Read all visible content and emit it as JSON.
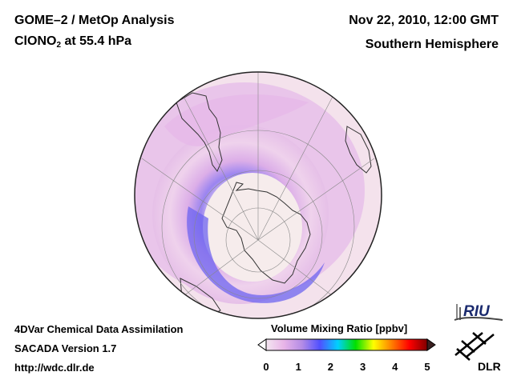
{
  "header": {
    "title_line1": "GOME–2 / MetOp Analysis",
    "title_species_main": "ClONO",
    "title_species_sub": "2",
    "title_level": " at 55.4 hPa",
    "date": "Nov 22, 2010, 12:00 GMT",
    "region": "Southern Hemisphere"
  },
  "footer": {
    "method": "4DVar Chemical Data Assimilation",
    "version": "SACADA Version 1.7",
    "url": "http://wdc.dlr.de"
  },
  "colorbar": {
    "title": "Volume Mixing Ratio [ppbv]",
    "ticks": [
      "0",
      "1",
      "2",
      "3",
      "4",
      "5"
    ],
    "min": 0,
    "max": 5,
    "colors": [
      "#f3e6f0",
      "#e8b4e8",
      "#b48ce6",
      "#5050ff",
      "#00d0ff",
      "#00e000",
      "#ffff00",
      "#ff8000",
      "#ff0000",
      "#800000"
    ]
  },
  "logos": {
    "riu": "RIU",
    "dlr": "DLR"
  },
  "map": {
    "projection": "orthographic, south pole view",
    "field_colors": {
      "low": "#f6e9ee",
      "mid": "#e2b4e6",
      "high": "#7a6cf2"
    }
  }
}
